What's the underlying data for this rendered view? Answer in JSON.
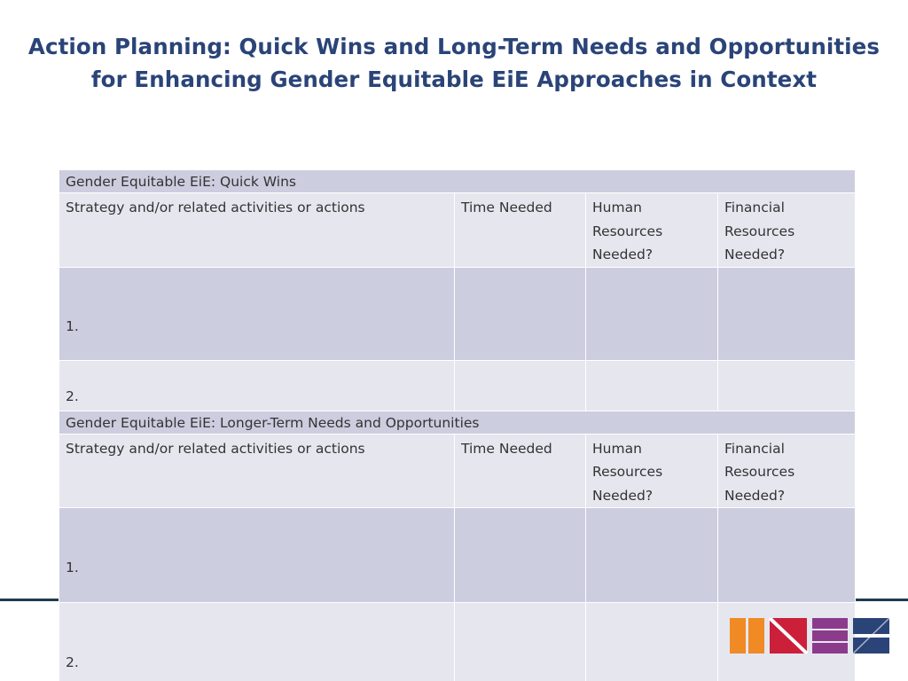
{
  "title": {
    "line1": "Action Planning: Quick Wins and Long-Term Needs and Opportunities",
    "line2": "for Enhancing Gender Equitable EiE Approaches in Context"
  },
  "columns": {
    "strategy": "Strategy and/or related activities or actions",
    "time": "Time Needed",
    "human_line1": "Human",
    "human_line2": "Resources",
    "human_line3": "Needed?",
    "financial_line1": "Financial",
    "financial_line2": "Resources",
    "financial_line3": "Needed?"
  },
  "sections": [
    {
      "heading": "Gender Equitable EiE: Quick Wins",
      "rows": [
        "1.",
        "2."
      ]
    },
    {
      "heading": "Gender Equitable EiE: Longer-Term Needs and Opportunities",
      "rows": [
        "1.",
        "2."
      ]
    }
  ],
  "colors": {
    "title": "#2a4478",
    "band_dark": "#cdcde0",
    "band_light": "#e6e6ef",
    "rule": "#1e3a52",
    "logo_orange": "#f08a24",
    "logo_red": "#cc1f3a",
    "logo_purple": "#8c3b8c",
    "logo_navy": "#2a4478"
  }
}
